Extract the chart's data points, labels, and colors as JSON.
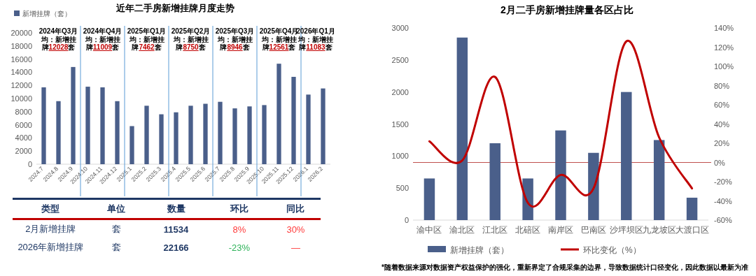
{
  "chart_data": [
    {
      "type": "bar",
      "title": "近年二手房新增挂牌月度走势",
      "categories": [
        "2024.7",
        "2024.8",
        "2024.9",
        "2024.10",
        "2024.11",
        "2024.12",
        "2025.1",
        "2025.2",
        "2025.3",
        "2025.4",
        "2025.5",
        "2025.6",
        "2025.7",
        "2025.8",
        "2025.9",
        "2025.10",
        "2025.11",
        "2025.12",
        "2026.1",
        "2026.2"
      ],
      "series": [
        {
          "name": "新增挂牌（套）",
          "color": "#4a5f8a",
          "values": [
            11700,
            9600,
            14800,
            11800,
            11700,
            9600,
            5800,
            8900,
            7600,
            7900,
            8900,
            9200,
            9500,
            8500,
            8800,
            9000,
            15300,
            13300,
            10600,
            11534
          ]
        }
      ],
      "ylim": [
        0,
        20000
      ],
      "yticks": [
        0,
        2000,
        4000,
        6000,
        8000,
        10000,
        12000,
        14000,
        16000,
        18000,
        20000
      ],
      "legend": "top left",
      "annotations": [
        "2024年Q3月均：新增挂牌12028套",
        "2024年Q4月均：新增挂牌11009套",
        "2025年Q1月均：新增挂牌7462套",
        "2025年Q2月均：新增挂牌8750套",
        "2025年Q3月均：新增挂牌8946套",
        "2025年Q4月均：新增挂牌12561套",
        "2026年Q1月均：新增挂牌11083套"
      ]
    },
    {
      "type": "other",
      "categories": [
        "类型",
        "单位",
        "数量",
        "环比",
        "同比"
      ],
      "annotations": [
        "2月新增挂牌",
        "套",
        "11534",
        "8%",
        "30%",
        "2026年新增挂牌",
        "套",
        "22166",
        "-23%",
        "—"
      ],
      "colors": [
        null,
        null,
        null,
        "#ff3b3b",
        "#ff3b3b",
        null,
        null,
        null,
        "#2eb35a",
        "#ff3b3b"
      ]
    },
    {
      "type": "bar",
      "title": "2月二手房新增挂牌量各区占比",
      "categories": [
        "渝中区",
        "渝北区",
        "江北区",
        "北碚区",
        "南岸区",
        "巴南区",
        "沙坪坝区",
        "九龙坡区",
        "大渡口区"
      ],
      "series": [
        {
          "name": "新增挂牌（套）",
          "color": "#4a5f8a",
          "values": [
            650,
            2850,
            1200,
            650,
            1400,
            1050,
            2000,
            1250,
            350
          ]
        },
        {
          "name": "环比变化（%）",
          "type": "line",
          "axis": "y2",
          "color": "#c00000",
          "values": [
            22,
            2,
            89,
            -42,
            -13,
            -27,
            126,
            26,
            -27
          ]
        }
      ],
      "ylim": [
        0,
        3000
      ],
      "yticks": [
        0,
        500,
        1000,
        1500,
        2000,
        2500,
        3000
      ],
      "y2lim": [
        -60,
        140
      ],
      "y2ticks": [
        {
          "value": -60,
          "label": "-60%"
        },
        {
          "value": -40,
          "label": "-40%"
        },
        {
          "value": -20,
          "label": "-20%"
        },
        {
          "value": 0,
          "label": "0%"
        },
        {
          "value": 20,
          "label": "20%"
        },
        {
          "value": 40,
          "label": "40%"
        },
        {
          "value": 60,
          "label": "60%"
        },
        {
          "value": 80,
          "label": "80%"
        },
        {
          "value": 100,
          "label": "100%"
        },
        {
          "value": 120,
          "label": "120%"
        },
        {
          "value": 140,
          "label": "140%"
        }
      ],
      "ref_lines": [
        {
          "axis": "y2",
          "value": 0,
          "color": "#c0504d"
        }
      ],
      "legend": "bottom",
      "annotations": [
        "*随着数据来源对数据资产权益保护的强化，重新界定了合规采集的边界，导致数据统计口径变化，因此数据以最新为准"
      ]
    }
  ]
}
